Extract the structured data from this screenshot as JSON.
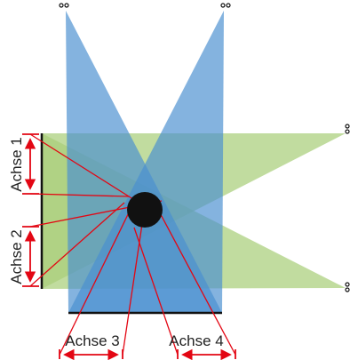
{
  "colors": {
    "blue_beam": "#4a8fd0",
    "green_beam": "#a9cf7a",
    "object": "#111111",
    "ray": "#e30613",
    "frame": "#111111"
  },
  "icons": {
    "sensor": "sensor-dots-icon",
    "object": "round-object-icon"
  },
  "labels": {
    "axis_1": "Achse 1",
    "axis_2": "Achse 2",
    "axis_3": "Achse 3",
    "axis_4": "Achse 4"
  }
}
